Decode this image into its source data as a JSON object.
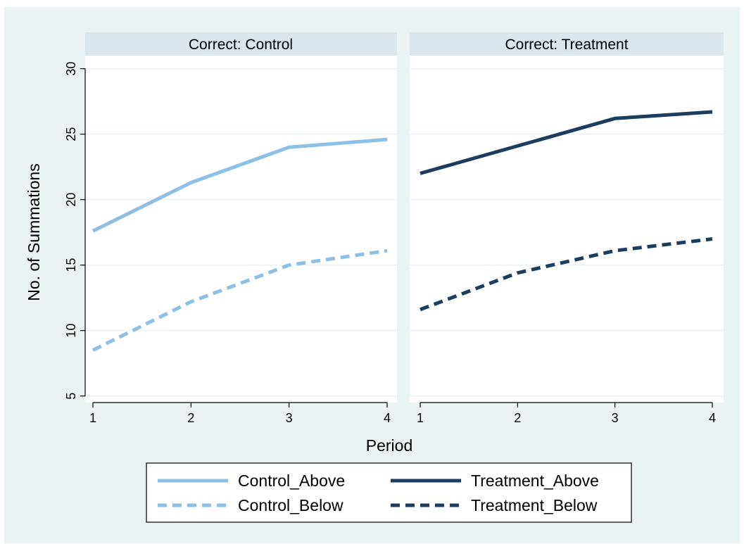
{
  "chart_data": {
    "type": "line",
    "ylabel": "No. of Summations",
    "xlabel": "Period",
    "x": [
      1,
      2,
      3,
      4
    ],
    "x_ticks": [
      "1",
      "2",
      "3",
      "4"
    ],
    "ylim": [
      4.5,
      31
    ],
    "y_ticks": [
      5,
      10,
      15,
      20,
      25,
      30
    ],
    "y_tick_labels": [
      "5",
      "10",
      "15",
      "20",
      "25",
      "30"
    ],
    "grid": true,
    "legend_position": "bottom",
    "panels": [
      {
        "title": "Correct: Control",
        "series": [
          {
            "name": "Control_Above",
            "values": [
              17.6,
              21.3,
              24.0,
              24.6
            ],
            "color": "#8cc0e6",
            "dash": "solid"
          },
          {
            "name": "Control_Below",
            "values": [
              8.5,
              12.2,
              15.0,
              16.1
            ],
            "color": "#8cc0e6",
            "dash": "dashed"
          }
        ]
      },
      {
        "title": "Correct: Treatment",
        "series": [
          {
            "name": "Treatment_Above",
            "values": [
              22.0,
              24.1,
              26.2,
              26.7
            ],
            "color": "#1c3d5e",
            "dash": "solid"
          },
          {
            "name": "Treatment_Below",
            "values": [
              11.6,
              14.4,
              16.1,
              17.0
            ],
            "color": "#1c3d5e",
            "dash": "dashed"
          }
        ]
      }
    ],
    "legend": [
      {
        "name": "Control_Above",
        "color": "#8cc0e6",
        "dash": "solid"
      },
      {
        "name": "Treatment_Above",
        "color": "#1c3d5e",
        "dash": "solid"
      },
      {
        "name": "Control_Below",
        "color": "#8cc0e6",
        "dash": "dashed"
      },
      {
        "name": "Treatment_Below",
        "color": "#1c3d5e",
        "dash": "dashed"
      }
    ],
    "colors": {
      "background": "#eaf2f3",
      "plot_background": "#ffffff",
      "strip_background": "#d9e6eb",
      "grid": "#eaf2f3"
    }
  }
}
